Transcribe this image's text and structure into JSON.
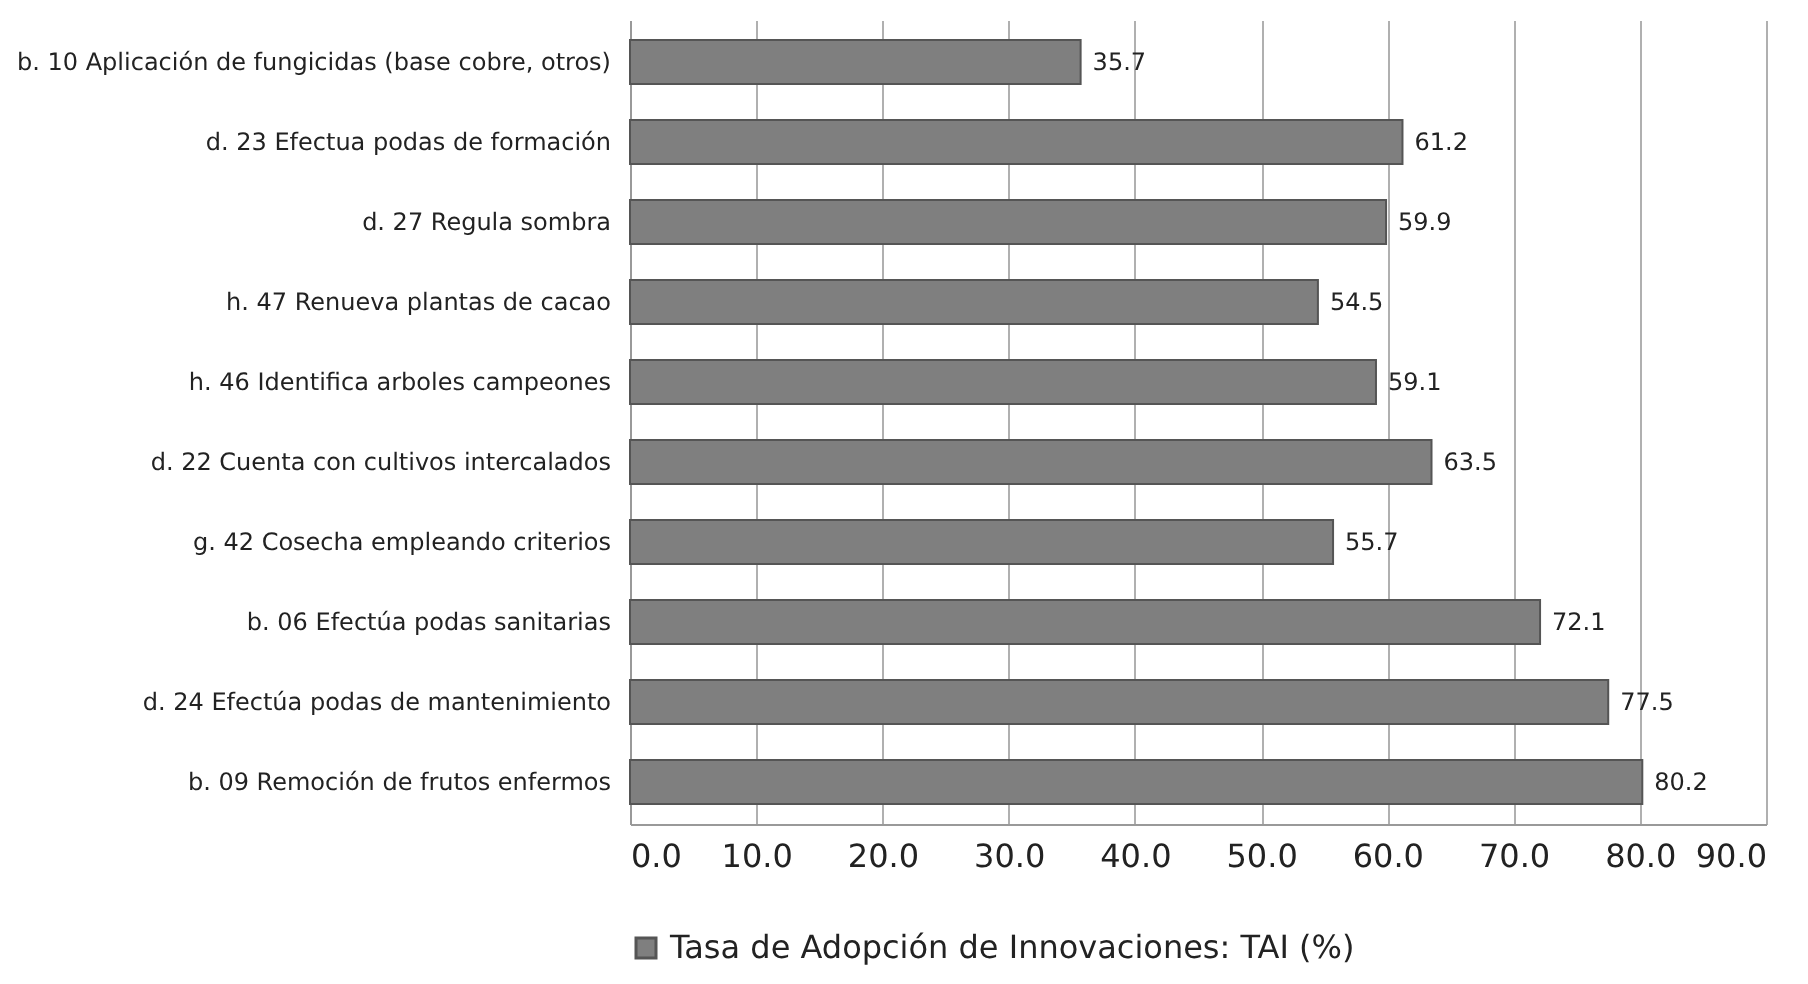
{
  "chart_data": {
    "type": "bar",
    "orientation": "horizontal",
    "categories": [
      "b. 10 Aplicación de fungicidas (base cobre, otros)",
      "d. 23 Efectua podas de formación",
      "d. 27 Regula sombra",
      "h. 47 Renueva plantas de cacao",
      "h. 46 Identifica arboles campeones",
      "d. 22 Cuenta con cultivos intercalados",
      "g. 42 Cosecha empleando criterios",
      "b. 06 Efectúa podas sanitarias",
      "d. 24 Efectúa podas de mantenimiento",
      "b. 09 Remoción de frutos enfermos"
    ],
    "series": [
      {
        "name": "Tasa de Adopción de Innovaciones: TAI (%)",
        "color": "#7f7f7f",
        "values": [
          35.7,
          61.2,
          59.9,
          54.5,
          59.1,
          63.5,
          55.7,
          72.1,
          77.5,
          80.2
        ]
      }
    ],
    "xlim": [
      0,
      90
    ],
    "xticks": [
      {
        "value": 0,
        "label": "0.0"
      },
      {
        "value": 10,
        "label": "10.0"
      },
      {
        "value": 20,
        "label": "20.0"
      },
      {
        "value": 30,
        "label": "30.0"
      },
      {
        "value": 40,
        "label": "40.0"
      },
      {
        "value": 50,
        "label": "50.0"
      },
      {
        "value": 60,
        "label": "60.0"
      },
      {
        "value": 70,
        "label": "70.0"
      },
      {
        "value": 80,
        "label": "80.0"
      },
      {
        "value": 90,
        "label": "90.0"
      }
    ],
    "grid": "x",
    "legend": "bottom",
    "data_labels": true
  }
}
